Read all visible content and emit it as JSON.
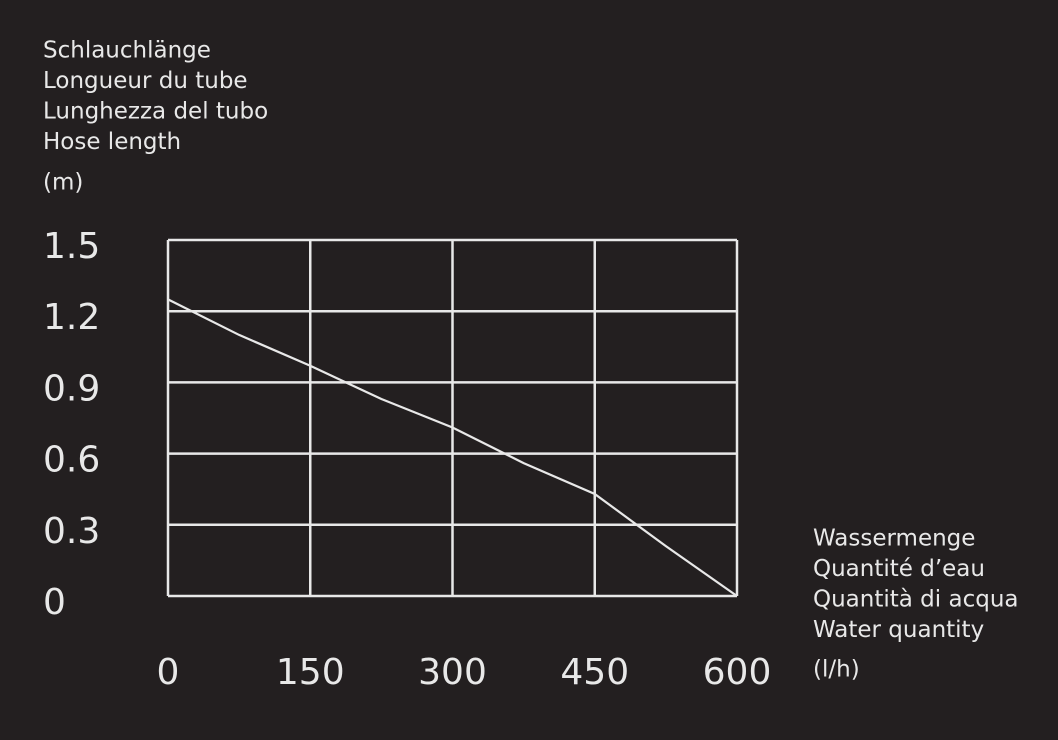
{
  "chart_data": {
    "type": "line",
    "y_label": [
      "Schlauchlänge",
      "Longueur du tube",
      "Lunghezza del tubo",
      "Hose length"
    ],
    "y_unit": "(m)",
    "x_label": [
      "Wassermenge",
      "Quantité d’eau",
      "Quantità di acqua",
      "Water quantity"
    ],
    "x_unit": "(l/h)",
    "x": [
      0,
      75,
      150,
      225,
      300,
      375,
      450,
      525,
      600
    ],
    "series": [
      {
        "color": "#e8e8e8",
        "values": [
          1.25,
          1.1,
          0.97,
          0.83,
          0.71,
          0.56,
          0.43,
          0.21,
          0
        ]
      }
    ],
    "xlim": [
      0,
      600
    ],
    "xticks": [
      0,
      150,
      300,
      450,
      600
    ],
    "ylim": [
      0,
      1.5
    ],
    "yticks": [
      0,
      0.3,
      0.6,
      0.9,
      1.2,
      1.5
    ],
    "grid": true
  }
}
